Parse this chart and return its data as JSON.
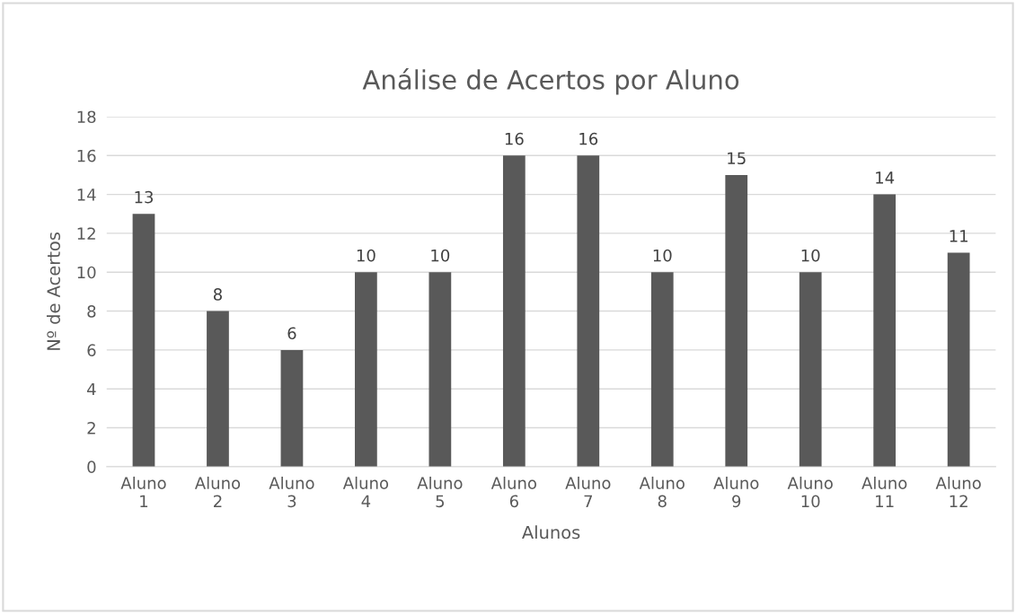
{
  "chart_data": {
    "type": "bar",
    "title": "Análise de Acertos por Aluno",
    "xlabel": "Alunos",
    "ylabel": "Nº de Acertos",
    "categories": [
      "Aluno 1",
      "Aluno 2",
      "Aluno 3",
      "Aluno 4",
      "Aluno 5",
      "Aluno 6",
      "Aluno 7",
      "Aluno 8",
      "Aluno 9",
      "Aluno 10",
      "Aluno 11",
      "Aluno 12"
    ],
    "values": [
      13,
      8,
      6,
      10,
      10,
      16,
      16,
      10,
      15,
      10,
      14,
      11
    ],
    "color": "#595959",
    "ylim": [
      0,
      18
    ],
    "yticks": [
      0,
      2,
      4,
      6,
      8,
      10,
      12,
      14,
      16,
      18
    ],
    "grid": "y",
    "data_labels": true,
    "legend": false
  }
}
